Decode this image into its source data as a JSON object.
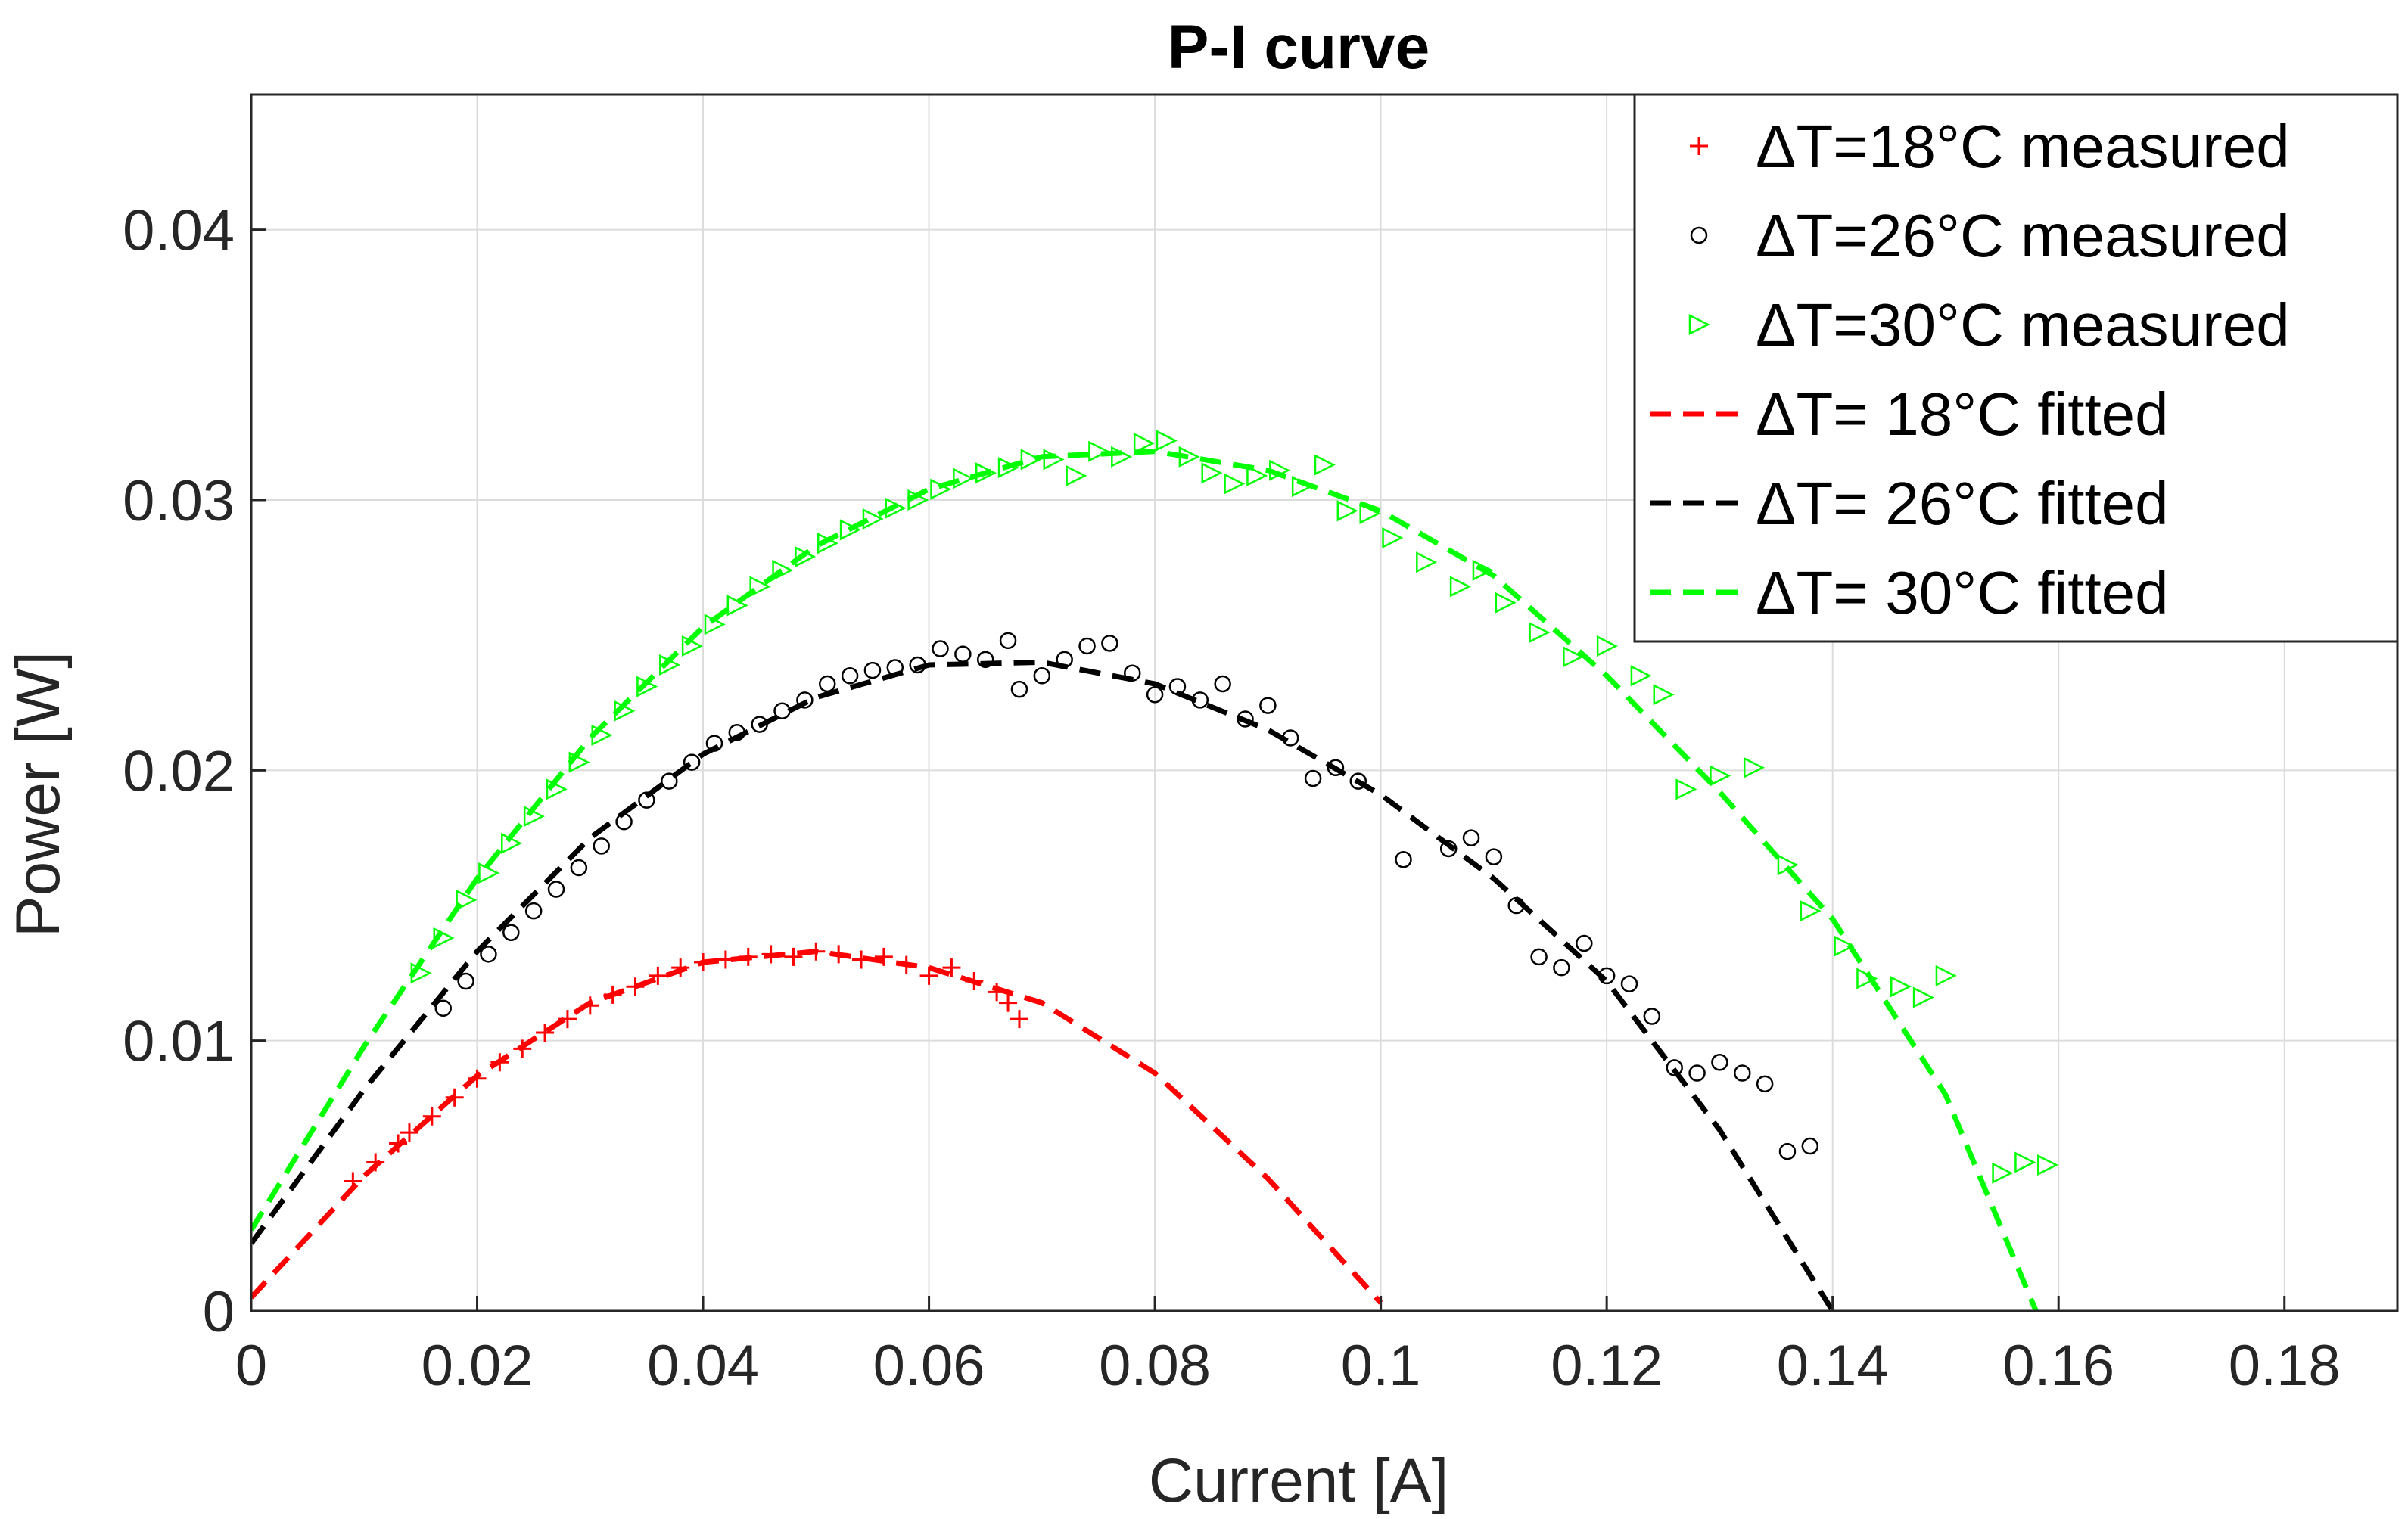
{
  "chart_data": {
    "type": "scatter",
    "title": "P-I curve",
    "xlabel": "Current [A]",
    "ylabel": "Power [W]",
    "xlim": [
      0,
      0.19
    ],
    "ylim": [
      0,
      0.045
    ],
    "xticks": [
      0,
      0.02,
      0.04,
      0.06,
      0.08,
      0.1,
      0.12,
      0.14,
      0.16,
      0.18
    ],
    "xtick_labels": [
      "0",
      "0.02",
      "0.04",
      "0.06",
      "0.08",
      "0.1",
      "0.12",
      "0.14",
      "0.16",
      "0.18"
    ],
    "yticks": [
      0,
      0.01,
      0.02,
      0.03,
      0.04
    ],
    "ytick_labels": [
      "0",
      "0.01",
      "0.02",
      "0.03",
      "0.04"
    ],
    "grid": true,
    "legend_position": "top-right",
    "series": [
      {
        "name": "ΔT=18°C measured",
        "kind": "measured",
        "marker": "plus",
        "color": "#ff0000",
        "x": [
          0.009,
          0.011,
          0.013,
          0.014,
          0.016,
          0.018,
          0.02,
          0.022,
          0.024,
          0.026,
          0.028,
          0.03,
          0.032,
          0.034,
          0.036,
          0.038,
          0.04,
          0.042,
          0.044,
          0.046,
          0.048,
          0.05,
          0.052,
          0.054,
          0.056,
          0.058,
          0.06,
          0.062,
          0.064,
          0.066,
          0.067,
          0.068
        ],
        "y": [
          0.0048,
          0.0055,
          0.0062,
          0.0066,
          0.0072,
          0.0079,
          0.0086,
          0.0092,
          0.0097,
          0.0103,
          0.0108,
          0.0113,
          0.0117,
          0.012,
          0.0124,
          0.0127,
          0.0129,
          0.013,
          0.0131,
          0.0132,
          0.0131,
          0.0133,
          0.0132,
          0.013,
          0.0131,
          0.0128,
          0.0124,
          0.0127,
          0.0122,
          0.0118,
          0.0114,
          0.0108
        ]
      },
      {
        "name": "ΔT=26°C measured",
        "kind": "measured",
        "marker": "circle",
        "color": "#000000",
        "x": [
          0.017,
          0.019,
          0.021,
          0.023,
          0.025,
          0.027,
          0.029,
          0.031,
          0.033,
          0.035,
          0.037,
          0.039,
          0.041,
          0.043,
          0.045,
          0.047,
          0.049,
          0.051,
          0.053,
          0.055,
          0.057,
          0.059,
          0.061,
          0.063,
          0.065,
          0.067,
          0.068,
          0.07,
          0.072,
          0.074,
          0.076,
          0.078,
          0.08,
          0.082,
          0.084,
          0.086,
          0.088,
          0.09,
          0.092,
          0.094,
          0.096,
          0.098,
          0.102,
          0.106,
          0.108,
          0.11,
          0.112,
          0.114,
          0.116,
          0.118,
          0.12,
          0.122,
          0.124,
          0.126,
          0.128,
          0.13,
          0.132,
          0.134,
          0.136,
          0.138
        ],
        "y": [
          0.0112,
          0.0122,
          0.0132,
          0.014,
          0.0148,
          0.0156,
          0.0164,
          0.0172,
          0.0181,
          0.0189,
          0.0196,
          0.0203,
          0.021,
          0.0214,
          0.0217,
          0.0222,
          0.0226,
          0.0232,
          0.0235,
          0.0237,
          0.0238,
          0.0239,
          0.0245,
          0.0243,
          0.0241,
          0.0248,
          0.023,
          0.0235,
          0.0241,
          0.0246,
          0.0247,
          0.0236,
          0.0228,
          0.0231,
          0.0226,
          0.0232,
          0.0219,
          0.0224,
          0.0212,
          0.0197,
          0.0201,
          0.0196,
          0.0167,
          0.0171,
          0.0175,
          0.0168,
          0.015,
          0.0131,
          0.0127,
          0.0136,
          0.0124,
          0.0121,
          0.0109,
          0.009,
          0.0088,
          0.0092,
          0.0088,
          0.0084,
          0.0059,
          0.0061
        ]
      },
      {
        "name": "ΔT=30°C measured",
        "kind": "measured",
        "marker": "triangle-right",
        "color": "#00ff00",
        "x": [
          0.015,
          0.017,
          0.019,
          0.021,
          0.023,
          0.025,
          0.027,
          0.029,
          0.031,
          0.033,
          0.035,
          0.037,
          0.039,
          0.041,
          0.043,
          0.045,
          0.047,
          0.049,
          0.051,
          0.053,
          0.055,
          0.057,
          0.059,
          0.061,
          0.063,
          0.065,
          0.067,
          0.069,
          0.071,
          0.073,
          0.075,
          0.077,
          0.079,
          0.081,
          0.083,
          0.085,
          0.087,
          0.089,
          0.091,
          0.093,
          0.095,
          0.097,
          0.099,
          0.101,
          0.104,
          0.107,
          0.109,
          0.111,
          0.114,
          0.117,
          0.12,
          0.123,
          0.125,
          0.127,
          0.13,
          0.133,
          0.136,
          0.138,
          0.141,
          0.143,
          0.146,
          0.148,
          0.15,
          0.155,
          0.157,
          0.159
        ],
        "y": [
          0.0125,
          0.0138,
          0.0152,
          0.0162,
          0.0173,
          0.0183,
          0.0193,
          0.0203,
          0.0213,
          0.0222,
          0.0231,
          0.0239,
          0.0246,
          0.0254,
          0.0261,
          0.0268,
          0.0274,
          0.0279,
          0.0284,
          0.0289,
          0.0293,
          0.0297,
          0.03,
          0.0304,
          0.0308,
          0.031,
          0.0312,
          0.0315,
          0.0315,
          0.0309,
          0.0318,
          0.0316,
          0.0321,
          0.0322,
          0.0316,
          0.031,
          0.0306,
          0.0309,
          0.0311,
          0.0305,
          0.0313,
          0.0296,
          0.0295,
          0.0286,
          0.0277,
          0.0268,
          0.0274,
          0.0262,
          0.0251,
          0.0242,
          0.0246,
          0.0235,
          0.0228,
          0.0193,
          0.0198,
          0.0201,
          0.0165,
          0.0148,
          0.0135,
          0.0123,
          0.012,
          0.0116,
          0.0124,
          0.0051,
          0.0055,
          0.0054
        ]
      },
      {
        "name": "ΔT= 18°C fitted",
        "kind": "fitted",
        "line": "dashed",
        "color": "#ff0000",
        "x": [
          0,
          0.01,
          0.02,
          0.03,
          0.04,
          0.05,
          0.06,
          0.07,
          0.08,
          0.09,
          0.1
        ],
        "y": [
          0.0005,
          0.005,
          0.0087,
          0.0114,
          0.0129,
          0.0133,
          0.0127,
          0.0114,
          0.0088,
          0.0049,
          0.0003
        ]
      },
      {
        "name": "ΔT= 26°C fitted",
        "kind": "fitted",
        "line": "dashed",
        "color": "#000000",
        "x": [
          0,
          0.01,
          0.02,
          0.03,
          0.04,
          0.05,
          0.06,
          0.07,
          0.08,
          0.09,
          0.1,
          0.11,
          0.12,
          0.13,
          0.14
        ],
        "y": [
          0.0025,
          0.0082,
          0.0133,
          0.0175,
          0.0206,
          0.0227,
          0.0239,
          0.024,
          0.0232,
          0.0215,
          0.0191,
          0.016,
          0.0122,
          0.0067,
          0.0
        ]
      },
      {
        "name": "ΔT= 30°C fitted",
        "kind": "fitted",
        "line": "dashed",
        "color": "#00ff00",
        "x": [
          0,
          0.01,
          0.02,
          0.03,
          0.04,
          0.05,
          0.06,
          0.07,
          0.08,
          0.09,
          0.1,
          0.11,
          0.12,
          0.13,
          0.14,
          0.15,
          0.158
        ],
        "y": [
          0.003,
          0.0098,
          0.016,
          0.0212,
          0.0253,
          0.0283,
          0.0304,
          0.0316,
          0.0318,
          0.0311,
          0.0296,
          0.0272,
          0.0235,
          0.0192,
          0.0145,
          0.008,
          0.0
        ]
      }
    ]
  }
}
